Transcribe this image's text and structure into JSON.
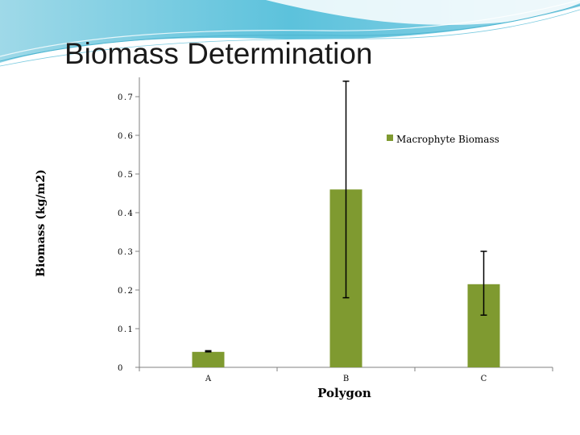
{
  "slide": {
    "title": "Biomass Determination"
  },
  "chart_data": {
    "type": "bar",
    "title": "",
    "xlabel": "Polygon",
    "ylabel": "Biomass (kg/m2)",
    "categories": [
      "A",
      "B",
      "C"
    ],
    "series": [
      {
        "name": "Macrophyte Biomass",
        "values": [
          0.04,
          0.46,
          0.215
        ],
        "error_low": [
          0.04,
          0.18,
          0.135
        ],
        "error_high": [
          0.043,
          0.74,
          0.3
        ]
      }
    ],
    "ylim": [
      0,
      0.75
    ],
    "yticks": [
      "0",
      "0.1",
      "0.2",
      "0.3",
      "0.4",
      "0.5",
      "0.6",
      "0.7"
    ],
    "grid": false,
    "legend_position": "top-right",
    "color": "#7f9a30"
  }
}
